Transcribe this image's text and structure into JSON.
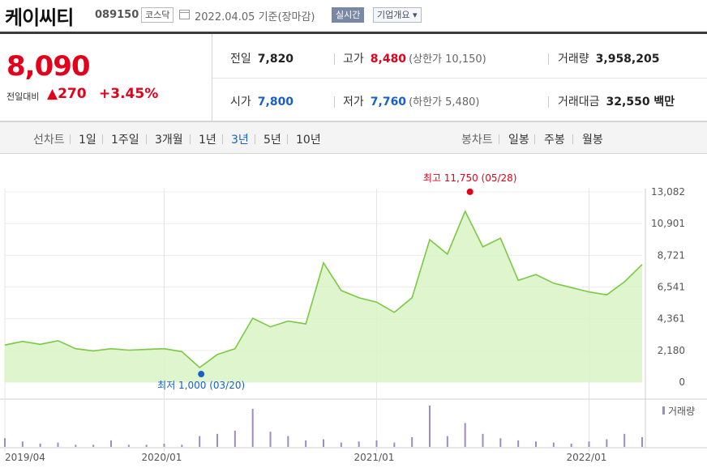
{
  "stock": {
    "name": "케이씨티",
    "code": "089150",
    "market": "코스닥",
    "date_text": "2022.04.05  기준(장마감)",
    "realtime_label": "실시간",
    "company_label": "기업개요 ▾"
  },
  "price": {
    "current": "8,090",
    "change_label": "전일대비",
    "change_arrow": "▲",
    "change": "270",
    "change_pct": "+3.45%"
  },
  "summary": {
    "prev_label": "전일",
    "prev": "7,820",
    "high_label": "고가",
    "high": "8,480",
    "upper_limit": "(상한가 10,150)",
    "volume_label": "거래량",
    "volume": "3,958,205",
    "open_label": "시가",
    "open": "7,800",
    "low_label": "저가",
    "low": "7,760",
    "lower_limit": "(하한가 5,480)",
    "amount_label": "거래대금",
    "amount": "32,550 백만"
  },
  "tabs": {
    "line_title": "선차트",
    "line": [
      "1일",
      "1주일",
      "3개월",
      "1년",
      "3년",
      "5년",
      "10년"
    ],
    "line_active": "3년",
    "candle_title": "봉차트",
    "candle": [
      "일봉",
      "주봉",
      "월봉"
    ]
  },
  "colors": {
    "up": "#e2001a",
    "down": "#1561c8",
    "line": "#7ac943",
    "fill": "#d9f3c4",
    "volume": "#9f8ac8"
  },
  "chart_data": {
    "type": "area",
    "x_ticks": [
      "2019/04",
      "2020/01",
      "2021/01",
      "2022/01"
    ],
    "y_ticks": [
      "13,082",
      "10,901",
      "8,721",
      "6,541",
      "4,361",
      "2,180",
      "0"
    ],
    "ylim": [
      0,
      13082
    ],
    "volume_label": "거래량",
    "max_label": "최고 11,750 (05/28)",
    "min_label": "최저 1,000 (03/20)",
    "x": [
      "2019-04",
      "2019-05",
      "2019-06",
      "2019-07",
      "2019-08",
      "2019-09",
      "2019-10",
      "2019-11",
      "2019-12",
      "2020-01",
      "2020-02",
      "2020-03",
      "2020-04",
      "2020-05",
      "2020-06",
      "2020-07",
      "2020-08",
      "2020-09",
      "2020-10",
      "2020-11",
      "2020-12",
      "2021-01",
      "2021-02",
      "2021-03",
      "2021-04",
      "2021-05",
      "2021-06",
      "2021-07",
      "2021-08",
      "2021-09",
      "2021-10",
      "2021-11",
      "2021-12",
      "2022-01",
      "2022-02",
      "2022-03",
      "2022-04"
    ],
    "values": [
      2550,
      2800,
      2600,
      2850,
      2300,
      2150,
      2300,
      2200,
      2250,
      2300,
      2100,
      1000,
      1900,
      2300,
      4400,
      3800,
      4200,
      4000,
      8200,
      6300,
      5800,
      5500,
      4800,
      5800,
      9800,
      8800,
      11750,
      9300,
      9900,
      7000,
      7400,
      6800,
      6500,
      6200,
      6000,
      6900,
      8090
    ],
    "volume": [
      8,
      5,
      3,
      4,
      2,
      2,
      6,
      2,
      2,
      3,
      2,
      10,
      12,
      15,
      35,
      14,
      10,
      6,
      7,
      4,
      5,
      6,
      4,
      9,
      38,
      10,
      22,
      12,
      8,
      6,
      5,
      4,
      3,
      5,
      7,
      12,
      9
    ]
  }
}
